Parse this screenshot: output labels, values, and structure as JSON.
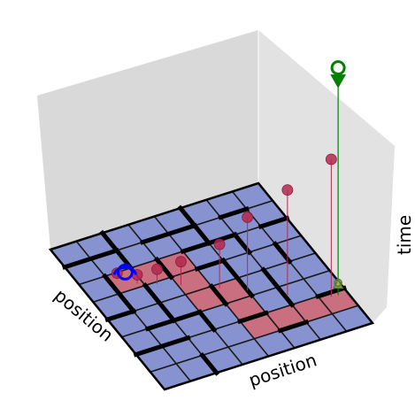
{
  "chart_data": {
    "type": "3d-grid-maze",
    "xlabel": "position",
    "ylabel": "position",
    "zlabel": "time",
    "grid_size": [
      8,
      8
    ],
    "colors": {
      "free_cell": "#8793d1",
      "path_cell": "#c96f80",
      "wall": "#000000",
      "pane_back": "#d9d9d9",
      "pane_side": "#e2e2e2",
      "drop_point": "#b5284e",
      "start_marker": "#0000ff",
      "goal_marker": "#008000"
    },
    "path_cells": [
      [
        1,
        2
      ],
      [
        2,
        2
      ],
      [
        3,
        2
      ],
      [
        3,
        3
      ],
      [
        3,
        4
      ],
      [
        4,
        4
      ],
      [
        4,
        5
      ],
      [
        4,
        6
      ],
      [
        5,
        6
      ],
      [
        6,
        6
      ],
      [
        7,
        6
      ]
    ],
    "start": {
      "col": 1,
      "row": 2
    },
    "goal": {
      "col": 7,
      "row": 6,
      "time": 0.78
    },
    "trajectory_points": [
      {
        "col": 1.3,
        "row": 2.3,
        "time": 0.02
      },
      {
        "col": 1.8,
        "row": 2.8,
        "time": 0.03
      },
      {
        "col": 2.4,
        "row": 3.1,
        "time": 0.05
      },
      {
        "col": 3.1,
        "row": 3.5,
        "time": 0.08
      },
      {
        "col": 4.2,
        "row": 4.2,
        "time": 0.15
      },
      {
        "col": 5.0,
        "row": 4.7,
        "time": 0.25
      },
      {
        "col": 6.1,
        "row": 5.5,
        "time": 0.36
      },
      {
        "col": 7.4,
        "row": 6.2,
        "time": 0.47
      }
    ]
  }
}
